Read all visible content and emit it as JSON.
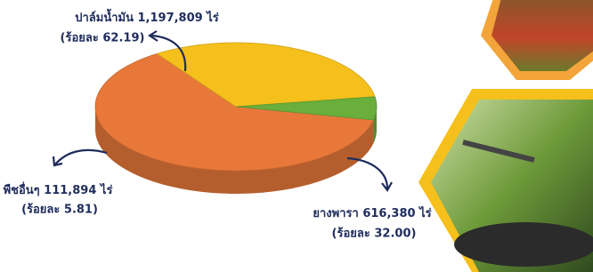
{
  "chart_data": {
    "type": "pie",
    "categories": [
      "ปาล์มน้ำมัน",
      "ยางพารา",
      "พืชอื่นๆ"
    ],
    "area_labels": [
      "1,197,809 ไร่",
      "616,380 ไร่",
      "111,894 ไร่"
    ],
    "values": [
      62.19,
      32.0,
      5.81
    ],
    "value_labels": [
      "(ร้อยละ 62.19)",
      "(ร้อยละ 32.00)",
      "(ร้อยละ 5.81)"
    ],
    "colors": [
      "#e8783a",
      "#f6c01c",
      "#6aae3c"
    ]
  }
}
